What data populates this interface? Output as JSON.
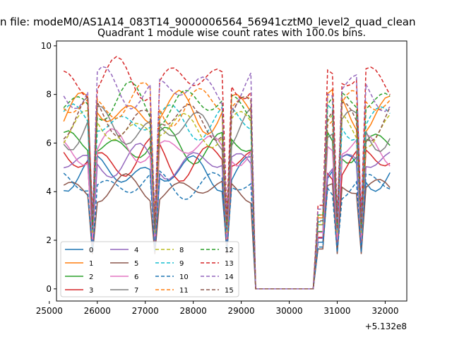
{
  "figure_title": "n file: modeM0/AS1A14_083T14_9000006564_56941cztM0_level2_quad_clean",
  "chart_data": {
    "type": "line",
    "title": "Quadrant 1 module wise count rates with 100.0s bins.",
    "xlabel": "",
    "ylabel": "",
    "x_offset_label": "+5.132e8",
    "xlim": [
      25150,
      32450
    ],
    "ylim": [
      -0.5,
      10.2
    ],
    "xticks": [
      25000,
      26000,
      27000,
      28000,
      29000,
      30000,
      31000,
      32000
    ],
    "xtick_labels": [
      "25000",
      "26000",
      "27000",
      "28000",
      "29000",
      "30000",
      "31000",
      "32000"
    ],
    "yticks": [
      0,
      2,
      4,
      6,
      8,
      10
    ],
    "ytick_labels": [
      "0",
      "2",
      "4",
      "6",
      "8",
      "10"
    ],
    "grid": false,
    "legend_position": "lower-left",
    "legend_columns": 4,
    "x_segments": [
      [
        25300,
        29200
      ],
      [
        29300,
        30550
      ],
      [
        30600,
        32100
      ]
    ],
    "series": [
      {
        "name": "0",
        "color": "#1f77b4",
        "dash": "solid",
        "level": 4.8,
        "amp": 0.5
      },
      {
        "name": "1",
        "color": "#ff7f0e",
        "dash": "solid",
        "level": 7.3,
        "amp": 0.6
      },
      {
        "name": "2",
        "color": "#2ca02c",
        "dash": "solid",
        "level": 5.9,
        "amp": 0.5
      },
      {
        "name": "3",
        "color": "#d62728",
        "dash": "solid",
        "level": 5.3,
        "amp": 0.6
      },
      {
        "name": "4",
        "color": "#9467bd",
        "dash": "solid",
        "level": 5.2,
        "amp": 0.5
      },
      {
        "name": "5",
        "color": "#8c564b",
        "dash": "solid",
        "level": 4.1,
        "amp": 0.4
      },
      {
        "name": "6",
        "color": "#e377c2",
        "dash": "solid",
        "level": 5.8,
        "amp": 0.5
      },
      {
        "name": "7",
        "color": "#7f7f7f",
        "dash": "solid",
        "level": 6.6,
        "amp": 0.6
      },
      {
        "name": "8",
        "color": "#bcbd22",
        "dash": "dashed",
        "level": 6.6,
        "amp": 0.5
      },
      {
        "name": "9",
        "color": "#17becf",
        "dash": "dashed",
        "level": 6.9,
        "amp": 0.5
      },
      {
        "name": "10",
        "color": "#1f77b4",
        "dash": "dashed",
        "level": 4.3,
        "amp": 0.4
      },
      {
        "name": "11",
        "color": "#ff7f0e",
        "dash": "dashed",
        "level": 7.6,
        "amp": 0.6
      },
      {
        "name": "12",
        "color": "#2ca02c",
        "dash": "dashed",
        "level": 7.6,
        "amp": 0.6
      },
      {
        "name": "13",
        "color": "#d62728",
        "dash": "dashed",
        "level": 8.6,
        "amp": 0.6
      },
      {
        "name": "14",
        "color": "#9467bd",
        "dash": "dashed",
        "level": 8.2,
        "amp": 0.6
      },
      {
        "name": "15",
        "color": "#8c564b",
        "dash": "dashed",
        "level": 7.0,
        "amp": 0.6
      }
    ]
  }
}
